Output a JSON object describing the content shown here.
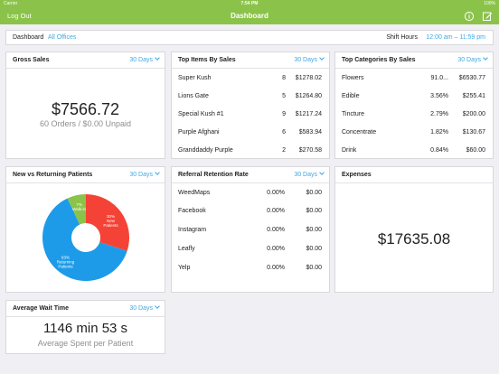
{
  "status_bar": {
    "carrier": "Carrier",
    "time": "7:54 PM",
    "battery": "100%"
  },
  "nav": {
    "logout_label": "Log Out",
    "title": "Dashboard",
    "icons": [
      "info-icon",
      "compose-icon"
    ]
  },
  "filter": {
    "crumb": "Dashboard",
    "office": "All Offices",
    "shift_label": "Shift Hours",
    "shift_value": "12:00 am – 11:59 pm"
  },
  "gross_sales": {
    "title": "Gross Sales",
    "period": "30 Days",
    "value": "$7566.72",
    "subtitle": "60 Orders / $0.00 Unpaid"
  },
  "top_items": {
    "title": "Top Items By Sales",
    "period": "30 Days",
    "rows": [
      {
        "name": "Super Kush",
        "count": "8",
        "amount": "$1278.02"
      },
      {
        "name": "Lions Gate",
        "count": "5",
        "amount": "$1264.80"
      },
      {
        "name": "Special Kush #1",
        "count": "9",
        "amount": "$1217.24"
      },
      {
        "name": "Purple Afghani",
        "count": "6",
        "amount": "$583.94"
      },
      {
        "name": "Granddaddy Purple",
        "count": "2",
        "amount": "$270.58"
      }
    ]
  },
  "top_categories": {
    "title": "Top Categories By Sales",
    "period": "30 Days",
    "rows": [
      {
        "name": "Flowers",
        "pct": "91.0...",
        "amount": "$6530.77"
      },
      {
        "name": "Edible",
        "pct": "3.56%",
        "amount": "$255.41"
      },
      {
        "name": "Tincture",
        "pct": "2.79%",
        "amount": "$200.00"
      },
      {
        "name": "Concentrate",
        "pct": "1.82%",
        "amount": "$130.67"
      },
      {
        "name": "Drink",
        "pct": "0.84%",
        "amount": "$60.00"
      }
    ]
  },
  "patients": {
    "title": "New vs Returning Patients",
    "period": "30 Days",
    "chart_data": {
      "type": "pie",
      "slices": [
        {
          "label": "New Patients",
          "pct_label": "30%",
          "value": 30,
          "color": "#f44336"
        },
        {
          "label": "Returning Patients",
          "pct_label": "63%",
          "value": 63,
          "color": "#1e9be8"
        },
        {
          "label": "Walk-in",
          "pct_label": "7%",
          "value": 7,
          "color": "#8bc34a"
        }
      ]
    }
  },
  "referral": {
    "title": "Referral Retention Rate",
    "period": "30 Days",
    "rows": [
      {
        "name": "WeedMaps",
        "pct": "0.00%",
        "amount": "$0.00"
      },
      {
        "name": "Facebook",
        "pct": "0.00%",
        "amount": "$0.00"
      },
      {
        "name": "Instagram",
        "pct": "0.00%",
        "amount": "$0.00"
      },
      {
        "name": "Leafly",
        "pct": "0.00%",
        "amount": "$0.00"
      },
      {
        "name": "Yelp",
        "pct": "0.00%",
        "amount": "$0.00"
      }
    ]
  },
  "expenses": {
    "title": "Expenses",
    "value": "$17635.08"
  },
  "wait_time": {
    "title": "Average Wait Time",
    "period": "30 Days",
    "value": "1146 min 53 s",
    "subtitle": "Average Spent per Patient"
  },
  "colors": {
    "accent": "#8bc34a",
    "link": "#41a8e2"
  }
}
